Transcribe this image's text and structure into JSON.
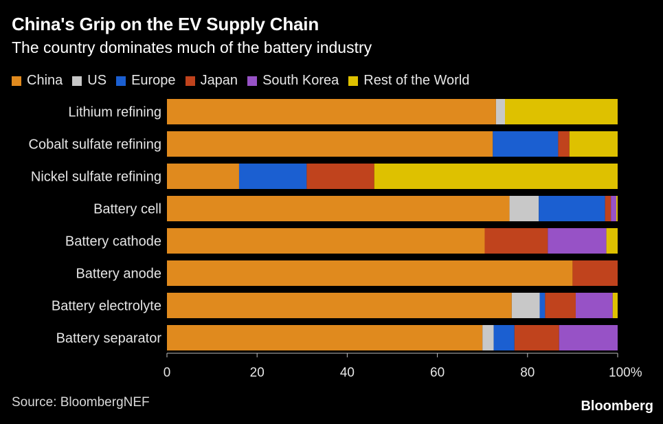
{
  "header": {
    "title": "China's Grip on the EV Supply Chain",
    "subtitle": "The country dominates much of the battery industry"
  },
  "footer": {
    "source": "Source: BloombergNEF",
    "brand": "Bloomberg"
  },
  "chart_data": {
    "type": "bar",
    "orientation": "horizontal",
    "stacked": true,
    "title": "China's Grip on the EV Supply Chain",
    "subtitle": "The country dominates much of the battery industry",
    "legend_position": "top-left",
    "xlim": [
      0,
      100
    ],
    "x_ticks": [
      "0",
      "20",
      "40",
      "60",
      "80",
      "100%"
    ],
    "x_tick_values": [
      0,
      20,
      40,
      60,
      80,
      100
    ],
    "grid": false,
    "categories": [
      "Lithium refining",
      "Cobalt sulfate refining",
      "Nickel sulfate refining",
      "Battery cell",
      "Battery cathode",
      "Battery anode",
      "Battery electrolyte",
      "Battery separator"
    ],
    "series": [
      {
        "name": "China",
        "color": "#e08a1e",
        "values": [
          73,
          72.3,
          16,
          76,
          70.5,
          90,
          76.5,
          70
        ]
      },
      {
        "name": "US",
        "color": "#c8c8c8",
        "values": [
          2,
          0,
          0,
          6.5,
          0,
          0,
          6.2,
          2.5
        ]
      },
      {
        "name": "Europe",
        "color": "#1b5fd1",
        "values": [
          0,
          14.5,
          15,
          14.7,
          0,
          0,
          1.2,
          4.6
        ]
      },
      {
        "name": "Japan",
        "color": "#c0431d",
        "values": [
          0,
          2.5,
          15,
          1.3,
          14,
          10,
          6.8,
          9.9
        ]
      },
      {
        "name": "South Korea",
        "color": "#9752c6",
        "values": [
          0,
          0,
          0,
          1.2,
          13,
          0,
          8.2,
          13
        ]
      },
      {
        "name": "Rest of the World",
        "color": "#dec100",
        "values": [
          25,
          10.7,
          54,
          0.3,
          2.5,
          0,
          1.1,
          0
        ]
      }
    ]
  }
}
